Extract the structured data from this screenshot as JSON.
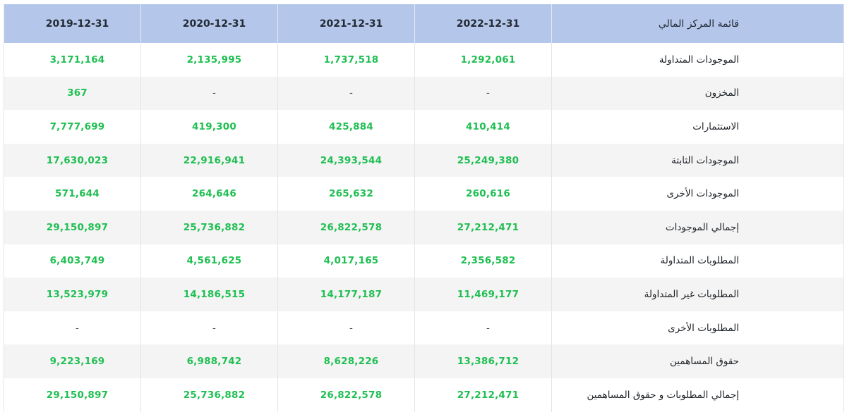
{
  "table": {
    "header_label": "قائمة المركز المالي",
    "years": [
      "2022-12-31",
      "2021-12-31",
      "2020-12-31",
      "2019-12-31"
    ],
    "rows": [
      {
        "label": "الموجودات المتداولة",
        "values": [
          "1,292,061",
          "1,737,518",
          "2,135,995",
          "3,171,164"
        ]
      },
      {
        "label": "المخزون",
        "values": [
          "-",
          "-",
          "-",
          "367"
        ]
      },
      {
        "label": "الاستثمارات",
        "values": [
          "410,414",
          "425,884",
          "419,300",
          "7,777,699"
        ]
      },
      {
        "label": "الموجودات الثابتة",
        "values": [
          "25,249,380",
          "24,393,544",
          "22,916,941",
          "17,630,023"
        ]
      },
      {
        "label": "الموجودات الأخرى",
        "values": [
          "260,616",
          "265,632",
          "264,646",
          "571,644"
        ]
      },
      {
        "label": "إجمالي الموجودات",
        "values": [
          "27,212,471",
          "26,822,578",
          "25,736,882",
          "29,150,897"
        ]
      },
      {
        "label": "المطلوبات المتداولة",
        "values": [
          "2,356,582",
          "4,017,165",
          "4,561,625",
          "6,403,749"
        ]
      },
      {
        "label": "المطلوبات غير المتداولة",
        "values": [
          "11,469,177",
          "14,177,187",
          "14,186,515",
          "13,523,979"
        ]
      },
      {
        "label": "المطلوبات الأخرى",
        "values": [
          "-",
          "-",
          "-",
          "-"
        ]
      },
      {
        "label": "حقوق المساهمين",
        "values": [
          "13,386,712",
          "8,628,226",
          "6,988,742",
          "9,223,169"
        ]
      },
      {
        "label": "إجمالي المطلوبات و حقوق المساهمين",
        "values": [
          "27,212,471",
          "26,822,578",
          "25,736,882",
          "29,150,897"
        ]
      }
    ]
  },
  "colors": {
    "header_bg": "#b4c6ea",
    "value_green": "#1fbf52",
    "stripe": "#f4f4f4"
  }
}
